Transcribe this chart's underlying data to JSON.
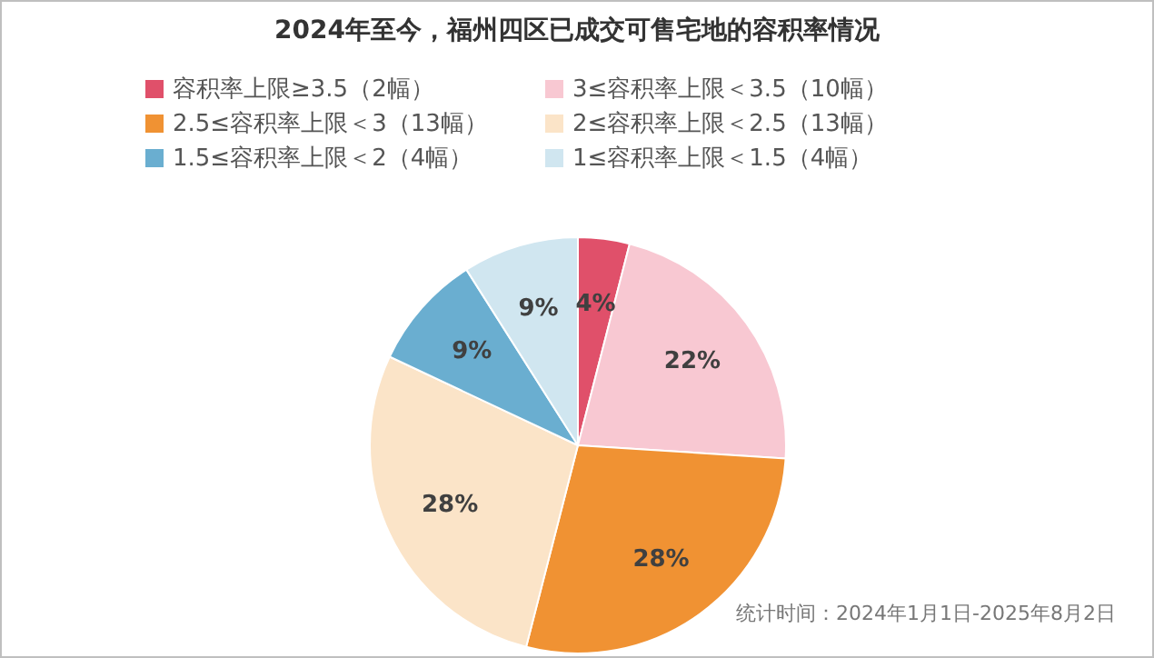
{
  "chart_data": {
    "type": "pie",
    "title": "2024年至今，福州四区已成交可售宅地的容积率情况",
    "categories": [
      "容积率上限≥3.5（2幅）",
      "3≤容积率上限＜3.5（10幅）",
      "2.5≤容积率上限＜3（13幅）",
      "2≤容积率上限＜2.5（13幅）",
      "1.5≤容积率上限＜2（4幅）",
      "1≤容积率上限＜1.5（4幅）"
    ],
    "values": [
      4,
      22,
      28,
      28,
      9,
      9
    ],
    "value_labels": [
      "4%",
      "22%",
      "28%",
      "28%",
      "9%",
      "9%"
    ],
    "colors": [
      "#e0506a",
      "#f8c8d2",
      "#f09233",
      "#fbe4c8",
      "#6aaed0",
      "#d0e6f0"
    ],
    "legend": "top",
    "annotations": [
      "统计时间：2024年1月1日-2025年8月2日"
    ]
  }
}
